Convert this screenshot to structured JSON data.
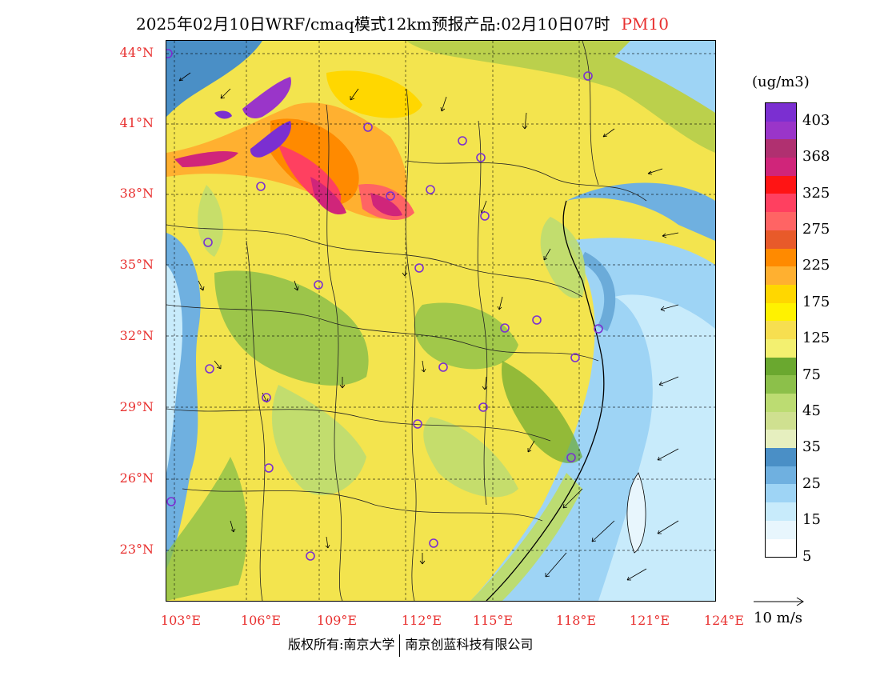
{
  "title": {
    "main": "2025年02月10日WRF/cmaq模式12km预报产品:02月10日07时",
    "variable": "PM10"
  },
  "axes": {
    "lat_labels": [
      "44°N",
      "41°N",
      "38°N",
      "35°N",
      "32°N",
      "29°N",
      "26°N",
      "23°N"
    ],
    "lon_labels": [
      "103°E",
      "106°E",
      "109°E",
      "112°E",
      "115°E",
      "118°E",
      "121°E",
      "124°E"
    ]
  },
  "colorbar": {
    "unit": "(ug/m3)",
    "labels": [
      "403",
      "368",
      "325",
      "275",
      "225",
      "175",
      "125",
      "75",
      "45",
      "35",
      "25",
      "15",
      "5"
    ],
    "colors": [
      "#7b2fd1",
      "#9a35c9",
      "#b03070",
      "#d0257a",
      "#ff1414",
      "#ff4060",
      "#ff6464",
      "#e85a2a",
      "#ff8a00",
      "#ffb030",
      "#ffd700",
      "#fff200",
      "#f7df50",
      "#f3f070",
      "#6aa82f",
      "#8cc04a",
      "#bcdc72",
      "#cfe090",
      "#e6efbf",
      "#4a8fc6",
      "#6fb0e0",
      "#9ed4f5",
      "#c8ebfb",
      "#e8f6fd",
      "#ffffff"
    ]
  },
  "wind_reference": {
    "label": "10 m/s"
  },
  "footer": {
    "left": "版权所有:南京大学",
    "right": "南京创蓝科技有限公司"
  }
}
